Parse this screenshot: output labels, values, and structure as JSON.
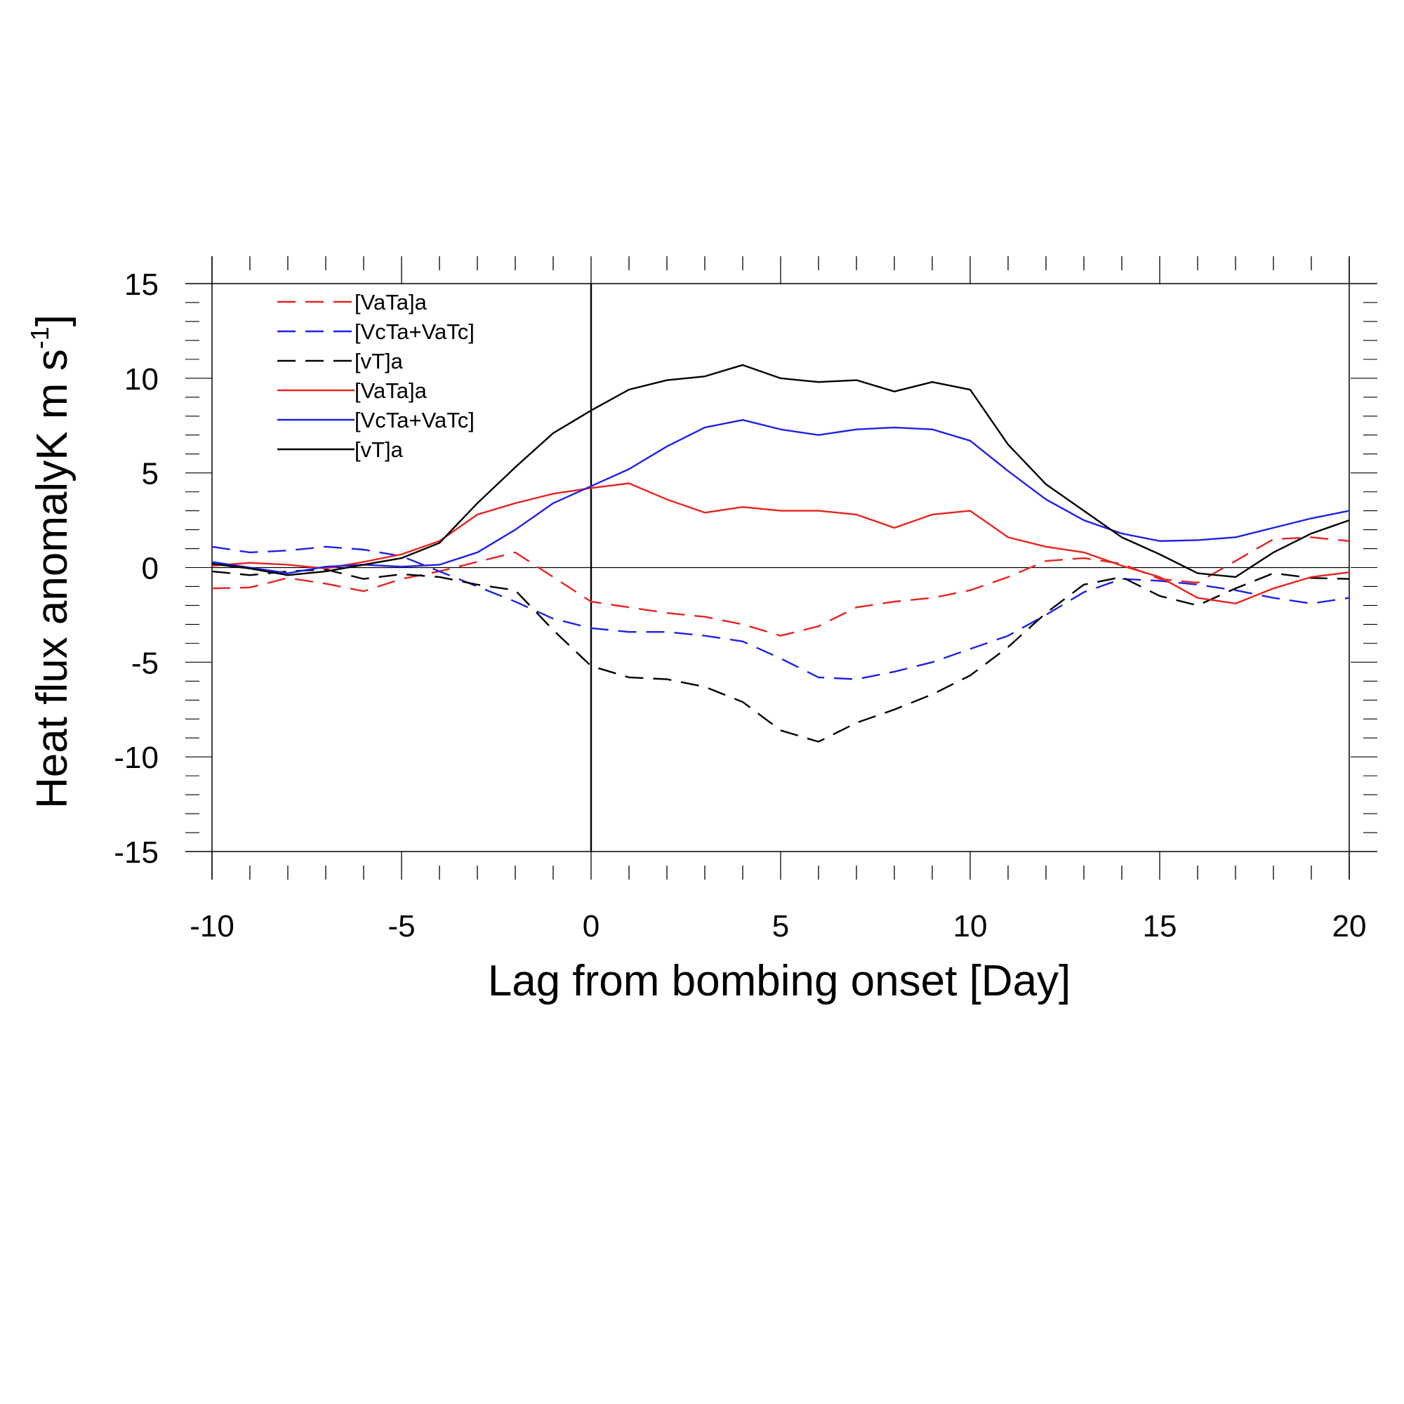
{
  "chart_data": {
    "type": "line",
    "xlabel": "Lag from bombing onset [Day]",
    "ylabel": "Heat flux anomalyK m s",
    "ylabel_superscript": "-1",
    "ylabel_suffix": "]",
    "xlim": [
      -10,
      20
    ],
    "ylim": [
      -15,
      15
    ],
    "xticks": [
      -10,
      -5,
      0,
      5,
      10,
      15,
      20
    ],
    "yticks": [
      -15,
      -10,
      -5,
      0,
      5,
      10,
      15
    ],
    "xtick_labels": [
      "-10",
      "-5",
      "0",
      "5",
      "10",
      "15",
      "20"
    ],
    "ytick_labels": [
      "-15",
      "-10",
      "-5",
      "0",
      "5",
      "10",
      "15"
    ],
    "reference_lines": {
      "horizontal_y": 0,
      "vertical_x": 0
    },
    "legend_position": "top-left",
    "x": [
      -10,
      -9,
      -8,
      -7,
      -6,
      -5,
      -4,
      -3,
      -2,
      -1,
      0,
      1,
      2,
      3,
      4,
      5,
      6,
      7,
      8,
      9,
      10,
      11,
      12,
      13,
      14,
      15,
      16,
      17,
      18,
      19,
      20
    ],
    "series": [
      {
        "name": "[VaTa]a",
        "color": "#e8231f",
        "dash": true,
        "values": [
          -1.1,
          -1.05,
          -0.55,
          -0.85,
          -1.25,
          -0.6,
          -0.2,
          0.3,
          0.8,
          -0.5,
          -1.8,
          -2.1,
          -2.4,
          -2.6,
          -3.0,
          -3.6,
          -3.1,
          -2.1,
          -1.8,
          -1.6,
          -1.2,
          -0.5,
          0.35,
          0.5,
          0.2,
          -0.6,
          -0.8,
          0.35,
          1.5,
          1.6,
          1.4
        ]
      },
      {
        "name": "[VcTa+VaTc]",
        "color": "#1f1fe8",
        "dash": true,
        "values": [
          1.1,
          0.8,
          0.9,
          1.1,
          0.95,
          0.6,
          -0.2,
          -1.0,
          -1.8,
          -2.7,
          -3.2,
          -3.4,
          -3.4,
          -3.6,
          -3.9,
          -4.8,
          -5.8,
          -5.9,
          -5.5,
          -5.0,
          -4.3,
          -3.6,
          -2.5,
          -1.3,
          -0.6,
          -0.7,
          -0.9,
          -1.2,
          -1.6,
          -1.9,
          -1.6
        ]
      },
      {
        "name": "[vT]a",
        "color": "#000000",
        "dash": true,
        "values": [
          -0.2,
          -0.4,
          -0.2,
          -0.1,
          -0.6,
          -0.35,
          -0.5,
          -0.9,
          -1.2,
          -3.3,
          -5.2,
          -5.8,
          -5.9,
          -6.3,
          -7.1,
          -8.6,
          -9.2,
          -8.2,
          -7.5,
          -6.7,
          -5.7,
          -4.2,
          -2.4,
          -0.9,
          -0.5,
          -1.5,
          -2.0,
          -1.1,
          -0.3,
          -0.55,
          -0.6
        ]
      },
      {
        "name": "[VaTa]a",
        "color": "#e8231f",
        "dash": false,
        "values": [
          0.1,
          0.25,
          0.15,
          -0.05,
          0.3,
          0.7,
          1.4,
          2.8,
          3.4,
          3.9,
          4.2,
          4.45,
          3.6,
          2.9,
          3.2,
          3.0,
          3.0,
          2.8,
          2.1,
          2.8,
          3.0,
          1.6,
          1.1,
          0.8,
          0.1,
          -0.5,
          -1.6,
          -1.9,
          -1.1,
          -0.5,
          -0.25
        ]
      },
      {
        "name": "[VcTa+VaTc]",
        "color": "#1f1fe8",
        "dash": false,
        "values": [
          0.3,
          0.0,
          -0.3,
          0.05,
          0.15,
          0.05,
          0.15,
          0.8,
          2.0,
          3.4,
          4.3,
          5.2,
          6.4,
          7.4,
          7.8,
          7.3,
          7.0,
          7.3,
          7.4,
          7.3,
          6.7,
          5.1,
          3.6,
          2.5,
          1.8,
          1.4,
          1.45,
          1.6,
          2.1,
          2.6,
          3.0
        ]
      },
      {
        "name": "[vT]a",
        "color": "#000000",
        "dash": false,
        "values": [
          0.2,
          -0.05,
          -0.4,
          -0.2,
          0.15,
          0.5,
          1.3,
          3.4,
          5.3,
          7.1,
          8.3,
          9.4,
          9.9,
          10.1,
          10.7,
          10.0,
          9.8,
          9.9,
          9.3,
          9.8,
          9.4,
          6.5,
          4.4,
          3.0,
          1.6,
          0.7,
          -0.3,
          -0.5,
          0.8,
          1.8,
          2.5
        ]
      }
    ]
  }
}
